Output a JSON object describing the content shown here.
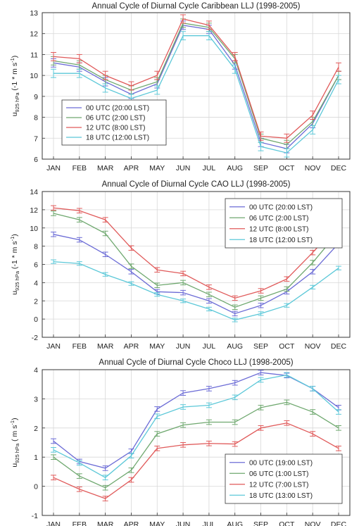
{
  "chart_data": [
    {
      "type": "line",
      "title": "Annual Cycle of Diurnal Cycle Caribbean LLJ (1998-2005)",
      "ylabel_main": "u",
      "ylabel_sub": "925 hPa",
      "ylabel_unit": " (-1 * m s",
      "ylabel_sup": "-1",
      "ylabel_end": ")",
      "categories": [
        "JAN",
        "FEB",
        "MAR",
        "APR",
        "MAY",
        "JUN",
        "JUL",
        "AUG",
        "SEP",
        "OCT",
        "NOV",
        "DEC"
      ],
      "ylim": [
        6,
        13
      ],
      "yticks": [
        "6",
        "7",
        "8",
        "9",
        "10",
        "11",
        "12",
        "13"
      ],
      "grid": true,
      "legend_position": "bottom-left",
      "series": [
        {
          "name": "00 UTC (20:00 LST)",
          "color": "#6c6cd6",
          "values": [
            10.6,
            10.4,
            9.7,
            9.1,
            9.6,
            12.4,
            12.2,
            10.5,
            6.8,
            6.5,
            7.7,
            10.0
          ],
          "errors": [
            0.2,
            0.2,
            0.2,
            0.2,
            0.2,
            0.2,
            0.2,
            0.2,
            0.2,
            0.2,
            0.2,
            0.2
          ]
        },
        {
          "name": "06 UTC (2:00 LST)",
          "color": "#6fa86f",
          "values": [
            10.7,
            10.5,
            9.8,
            9.3,
            9.7,
            12.5,
            12.3,
            10.8,
            7.0,
            6.7,
            7.8,
            10.0
          ],
          "errors": [
            0.2,
            0.2,
            0.2,
            0.2,
            0.2,
            0.2,
            0.2,
            0.2,
            0.2,
            0.2,
            0.2,
            0.2
          ]
        },
        {
          "name": "12 UTC (8:00 LST)",
          "color": "#e05a5a",
          "values": [
            10.9,
            10.8,
            10.0,
            9.5,
            10.0,
            12.7,
            12.4,
            10.9,
            7.1,
            7.0,
            8.1,
            10.4
          ],
          "errors": [
            0.2,
            0.2,
            0.2,
            0.2,
            0.2,
            0.2,
            0.2,
            0.2,
            0.2,
            0.2,
            0.2,
            0.2
          ]
        },
        {
          "name": "18 UTC (12:00 LST)",
          "color": "#5cc8d8",
          "values": [
            10.1,
            10.1,
            9.4,
            8.9,
            9.3,
            11.9,
            11.9,
            10.3,
            6.6,
            6.3,
            7.4,
            9.8
          ],
          "errors": [
            0.2,
            0.2,
            0.2,
            0.2,
            0.2,
            0.2,
            0.2,
            0.2,
            0.2,
            0.2,
            0.2,
            0.2
          ]
        }
      ]
    },
    {
      "type": "line",
      "title": "Annual Cycle of Diurnal Cycle CAO LLJ (1998-2005)",
      "ylabel_main": "u",
      "ylabel_sub": "925 hPa",
      "ylabel_unit": " (-1 * m s",
      "ylabel_sup": "-1",
      "ylabel_end": ")",
      "categories": [
        "JAN",
        "FEB",
        "MAR",
        "APR",
        "MAY",
        "JUN",
        "JUL",
        "AUG",
        "SEP",
        "OCT",
        "NOV",
        "DEC"
      ],
      "ylim": [
        -2,
        14
      ],
      "yticks": [
        "-2",
        "0",
        "2",
        "4",
        "6",
        "8",
        "10",
        "12",
        "14"
      ],
      "grid": true,
      "legend_position": "top-right",
      "series": [
        {
          "name": "00 UTC (20:00 LST)",
          "color": "#6c6cd6",
          "values": [
            9.3,
            8.7,
            7.1,
            5.2,
            3.0,
            2.9,
            2.0,
            0.6,
            1.5,
            3.0,
            5.2,
            8.3
          ],
          "errors": [
            0.25,
            0.25,
            0.25,
            0.25,
            0.25,
            0.25,
            0.25,
            0.25,
            0.25,
            0.25,
            0.25,
            0.25
          ]
        },
        {
          "name": "06 UTC (2:00 LST)",
          "color": "#6fa86f",
          "values": [
            11.6,
            10.9,
            9.4,
            5.8,
            3.7,
            4.0,
            2.7,
            1.3,
            2.3,
            3.3,
            6.2,
            9.6
          ],
          "errors": [
            0.25,
            0.25,
            0.25,
            0.25,
            0.25,
            0.25,
            0.25,
            0.25,
            0.25,
            0.25,
            0.25,
            0.25
          ]
        },
        {
          "name": "12 UTC (8:00 LST)",
          "color": "#e05a5a",
          "values": [
            12.2,
            11.9,
            10.9,
            7.8,
            5.4,
            5.0,
            3.5,
            2.3,
            3.1,
            4.4,
            7.3,
            10.4
          ],
          "errors": [
            0.25,
            0.25,
            0.25,
            0.25,
            0.25,
            0.25,
            0.25,
            0.25,
            0.25,
            0.25,
            0.25,
            0.25
          ]
        },
        {
          "name": "18 UTC (12:00 LST)",
          "color": "#5cc8d8",
          "values": [
            6.3,
            6.1,
            4.9,
            3.9,
            2.7,
            2.0,
            1.1,
            -0.1,
            0.6,
            1.5,
            3.5,
            5.6
          ],
          "errors": [
            0.2,
            0.2,
            0.2,
            0.2,
            0.2,
            0.2,
            0.2,
            0.2,
            0.2,
            0.2,
            0.2,
            0.2
          ]
        }
      ]
    },
    {
      "type": "line",
      "title": "Annual Cycle of Diurnal Cycle Choco LLJ (1998-2005)",
      "ylabel_main": "u",
      "ylabel_sub": "925 hPa",
      "ylabel_unit": " ( m s",
      "ylabel_sup": "-1",
      "ylabel_end": ")",
      "categories": [
        "JAN",
        "FEB",
        "MAR",
        "APR",
        "MAY",
        "JUN",
        "JUL",
        "AUG",
        "SEP",
        "OCT",
        "NOV",
        "DEC"
      ],
      "ylim": [
        -1,
        4
      ],
      "yticks": [
        "-1",
        "0",
        "1",
        "2",
        "3",
        "4"
      ],
      "grid": true,
      "legend_position": "bottom-right",
      "series": [
        {
          "name": "00 UTC (19:00 LST)",
          "color": "#6c6cd6",
          "values": [
            1.55,
            0.85,
            0.62,
            1.2,
            2.65,
            3.2,
            3.35,
            3.55,
            3.9,
            3.8,
            3.35,
            2.7
          ],
          "errors": [
            0.08,
            0.08,
            0.08,
            0.08,
            0.08,
            0.08,
            0.08,
            0.08,
            0.08,
            0.08,
            0.08,
            0.08
          ]
        },
        {
          "name": "06 UTC (1:00 LST)",
          "color": "#6fa86f",
          "values": [
            1.0,
            0.35,
            -0.05,
            0.55,
            1.8,
            2.1,
            2.2,
            2.2,
            2.7,
            2.88,
            2.55,
            2.0
          ],
          "errors": [
            0.08,
            0.08,
            0.08,
            0.08,
            0.08,
            0.08,
            0.08,
            0.08,
            0.08,
            0.08,
            0.08,
            0.08
          ]
        },
        {
          "name": "12 UTC (7:00 LST)",
          "color": "#e05a5a",
          "values": [
            0.3,
            -0.1,
            -0.42,
            0.22,
            1.3,
            1.42,
            1.47,
            1.45,
            2.0,
            2.17,
            1.8,
            1.3
          ],
          "errors": [
            0.08,
            0.08,
            0.08,
            0.08,
            0.08,
            0.08,
            0.08,
            0.08,
            0.08,
            0.08,
            0.08,
            0.08
          ]
        },
        {
          "name": "18 UTC (13:00 LST)",
          "color": "#5cc8d8",
          "values": [
            1.25,
            0.8,
            0.3,
            1.05,
            2.4,
            2.72,
            2.78,
            3.05,
            3.65,
            3.82,
            3.35,
            2.55
          ],
          "errors": [
            0.08,
            0.08,
            0.08,
            0.08,
            0.08,
            0.08,
            0.08,
            0.08,
            0.08,
            0.08,
            0.08,
            0.08
          ]
        }
      ]
    }
  ]
}
